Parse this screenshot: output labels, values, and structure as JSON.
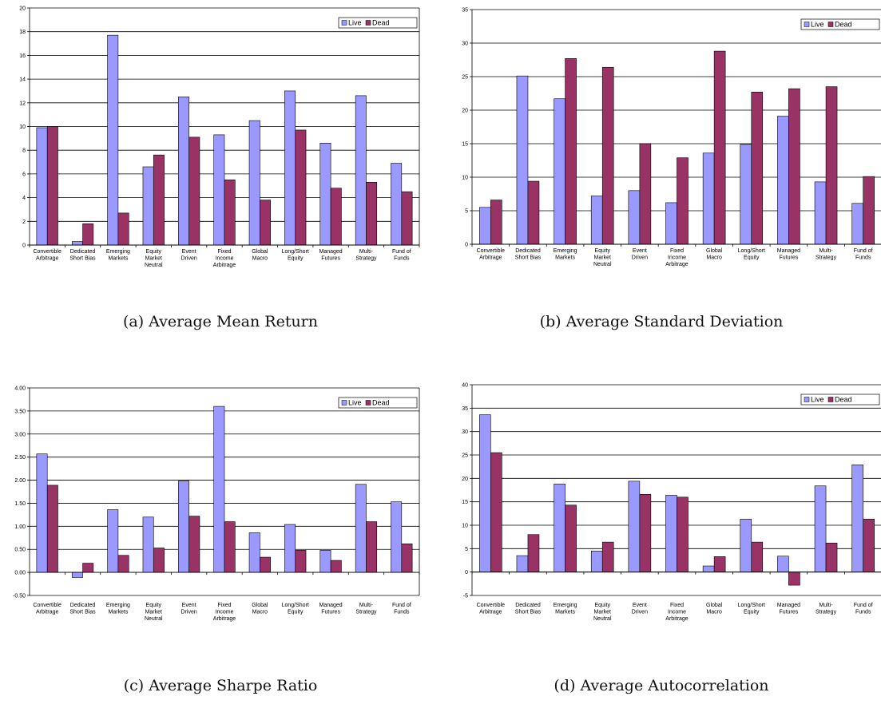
{
  "colors": {
    "live": "#9999ff",
    "dead": "#993366",
    "grid": "#000000"
  },
  "legend": {
    "live": "Live",
    "dead": "Dead"
  },
  "categories": [
    [
      "Convertible",
      "Arbitrage"
    ],
    [
      "Dedicated",
      "Short Bias"
    ],
    [
      "Emerging",
      "Markets"
    ],
    [
      "Equity",
      "Market",
      "Neutral"
    ],
    [
      "Event",
      "Driven"
    ],
    [
      "Fixed",
      "Income",
      "Arbitrage"
    ],
    [
      "Global",
      "Macro"
    ],
    [
      "Long/Short",
      "Equity"
    ],
    [
      "Managed",
      "Futures"
    ],
    [
      "Multi-",
      "Strategy"
    ],
    [
      "Fund of",
      "Funds"
    ]
  ],
  "chart_data": [
    {
      "type": "bar",
      "caption": "(a) Average Mean Return",
      "ylim": [
        0,
        20
      ],
      "yticks": [
        "0",
        "2",
        "4",
        "6",
        "8",
        "10",
        "12",
        "14",
        "16",
        "18",
        "20"
      ],
      "ytick_values": [
        0,
        2,
        4,
        6,
        8,
        10,
        12,
        14,
        16,
        18,
        20
      ],
      "series": [
        {
          "name": "Live",
          "values": [
            9.9,
            0.3,
            17.7,
            6.6,
            12.5,
            9.3,
            10.5,
            13.0,
            8.6,
            12.6,
            6.9
          ]
        },
        {
          "name": "Dead",
          "values": [
            10.0,
            1.8,
            2.7,
            7.6,
            9.1,
            5.5,
            3.8,
            9.7,
            4.8,
            5.3,
            4.5
          ]
        }
      ]
    },
    {
      "type": "bar",
      "caption": "(b) Average Standard Deviation",
      "ylim": [
        0,
        35
      ],
      "yticks": [
        "0",
        "5",
        "10",
        "15",
        "20",
        "25",
        "30",
        "35"
      ],
      "ytick_values": [
        0,
        5,
        10,
        15,
        20,
        25,
        30,
        35
      ],
      "series": [
        {
          "name": "Live",
          "values": [
            5.5,
            25.1,
            21.7,
            7.2,
            8.0,
            6.2,
            13.6,
            14.9,
            19.1,
            9.3,
            6.1
          ]
        },
        {
          "name": "Dead",
          "values": [
            6.6,
            9.4,
            27.7,
            26.4,
            15.0,
            12.9,
            28.8,
            22.7,
            23.2,
            23.5,
            10.1
          ]
        }
      ]
    },
    {
      "type": "bar",
      "caption": "(c) Average Sharpe Ratio",
      "ylim": [
        -0.5,
        4.0
      ],
      "yticks": [
        "-0.50",
        "0.00",
        "0.50",
        "1.00",
        "1.50",
        "2.00",
        "2.50",
        "3.00",
        "3.50",
        "4.00"
      ],
      "ytick_values": [
        -0.5,
        0,
        0.5,
        1.0,
        1.5,
        2.0,
        2.5,
        3.0,
        3.5,
        4.0
      ],
      "series": [
        {
          "name": "Live",
          "values": [
            2.57,
            -0.11,
            1.36,
            1.2,
            1.98,
            3.6,
            0.86,
            1.04,
            0.48,
            1.91,
            1.53
          ]
        },
        {
          "name": "Dead",
          "values": [
            1.89,
            0.2,
            0.37,
            0.53,
            1.22,
            1.1,
            0.33,
            0.48,
            0.26,
            1.1,
            0.62
          ]
        }
      ]
    },
    {
      "type": "bar",
      "caption": "(d) Average Autocorrelation",
      "ylim": [
        -5,
        40
      ],
      "yticks": [
        "-5",
        "0",
        "5",
        "10",
        "15",
        "20",
        "25",
        "30",
        "35",
        "40"
      ],
      "ytick_values": [
        -5,
        0,
        5,
        10,
        15,
        20,
        25,
        30,
        35,
        40
      ],
      "series": [
        {
          "name": "Live",
          "values": [
            33.6,
            3.5,
            18.8,
            4.5,
            19.4,
            16.4,
            1.3,
            11.3,
            3.4,
            18.4,
            22.9
          ]
        },
        {
          "name": "Dead",
          "values": [
            25.5,
            8.0,
            14.3,
            6.4,
            16.6,
            16.0,
            3.3,
            6.4,
            -2.8,
            6.2,
            11.3
          ]
        }
      ]
    }
  ]
}
